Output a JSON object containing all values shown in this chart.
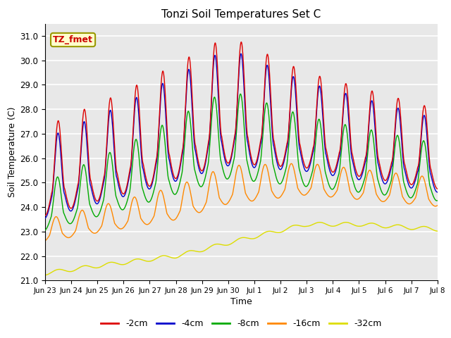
{
  "title": "Tonzi Soil Temperatures Set C",
  "xlabel": "Time",
  "ylabel": "Soil Temperature (C)",
  "annotation": "TZ_fmet",
  "ylim": [
    21.0,
    31.5
  ],
  "yticks": [
    21.0,
    22.0,
    23.0,
    24.0,
    25.0,
    26.0,
    27.0,
    28.0,
    29.0,
    30.0,
    31.0
  ],
  "xtick_labels": [
    "Jun 23",
    "Jun 24",
    "Jun 25",
    "Jun 26",
    "Jun 27",
    "Jun 28",
    "Jun 29",
    "Jun 30",
    "Jul 1",
    "Jul 2",
    "Jul 3",
    "Jul 4",
    "Jul 5",
    "Jul 6",
    "Jul 7",
    "Jul 8"
  ],
  "legend_labels": [
    "-2cm",
    "-4cm",
    "-8cm",
    "-16cm",
    "-32cm"
  ],
  "line_colors": [
    "#dd0000",
    "#0000cc",
    "#00aa00",
    "#ff8800",
    "#dddd00"
  ],
  "bg_color": "#e8e8e8",
  "plot_bg": "#e8e8e8",
  "annotation_bg": "#ffffcc",
  "annotation_fg": "#cc0000",
  "annotation_border": "#999900"
}
